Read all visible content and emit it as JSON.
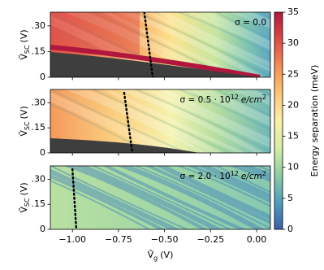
{
  "chart_data": {
    "type": "heatmap",
    "x_label": {
      "symbol": "Ṽ",
      "sub": "g",
      "unit": "(V)"
    },
    "xlim": [
      -1.12,
      0.075
    ],
    "xticks": [
      {
        "value": -1,
        "label": "−1.00"
      },
      {
        "value": -0.75,
        "label": "−0.75"
      },
      {
        "value": -0.5,
        "label": "−0.50"
      },
      {
        "value": -0.25,
        "label": "−0.25"
      },
      {
        "value": 0,
        "label": "0.00"
      }
    ],
    "colorbar": {
      "label": "Energy separation (meV)",
      "ylim": [
        0,
        35
      ],
      "yticks": [
        0,
        5,
        10,
        15,
        20,
        25,
        30,
        35
      ],
      "colors": [
        "#3b5fad",
        "#4d9fbf",
        "#8ccfa4",
        "#d6eea0",
        "#fbf0a8",
        "#fcc677",
        "#f68d52",
        "#e04a46",
        "#b0163e"
      ]
    },
    "panels": [
      {
        "y_label": {
          "symbol": "Ṽ",
          "sub": "SC",
          "unit": "(V)"
        },
        "ylim": [
          0,
          0.38
        ],
        "yticks": [
          0,
          {
            "value": 0.15,
            "label": ".15"
          },
          {
            "value": 0.3,
            "label": ".30"
          }
        ],
        "annotation": {
          "text": "σ = 0.0"
        },
        "dotted_line": {
          "color": "#000000",
          "x": [
            -0.61,
            -0.564
          ],
          "y": [
            0.38,
            0
          ]
        }
      },
      {
        "y_label": {
          "symbol": "Ṽ",
          "sub": "SC",
          "unit": "(V)"
        },
        "ylim": [
          0,
          0.38
        ],
        "yticks": [
          0,
          {
            "value": 0.15,
            "label": ".15"
          },
          {
            "value": 0.3,
            "label": ".30"
          }
        ],
        "annotation": {
          "text": "σ = 0.5 · 10",
          "exp": "12",
          "unit": "e/cm",
          "unit_exp": "2"
        },
        "dotted_line": {
          "color": "#000000",
          "x": [
            -0.719,
            -0.675
          ],
          "y": [
            0.36,
            0
          ]
        }
      },
      {
        "y_label": {
          "symbol": "Ṽ",
          "sub": "SC",
          "unit": "(V)"
        },
        "ylim": [
          0,
          0.38
        ],
        "yticks": [
          0,
          {
            "value": 0.15,
            "label": ".15"
          },
          {
            "value": 0.3,
            "label": ".30"
          }
        ],
        "annotation": {
          "text": "σ = 2.0 · 10",
          "exp": "12",
          "unit": "e/cm",
          "unit_exp": "2"
        },
        "dotted_line": {
          "color": "#000000",
          "x": [
            -1.0,
            -0.979
          ],
          "y": [
            0.36,
            0
          ]
        }
      }
    ]
  }
}
